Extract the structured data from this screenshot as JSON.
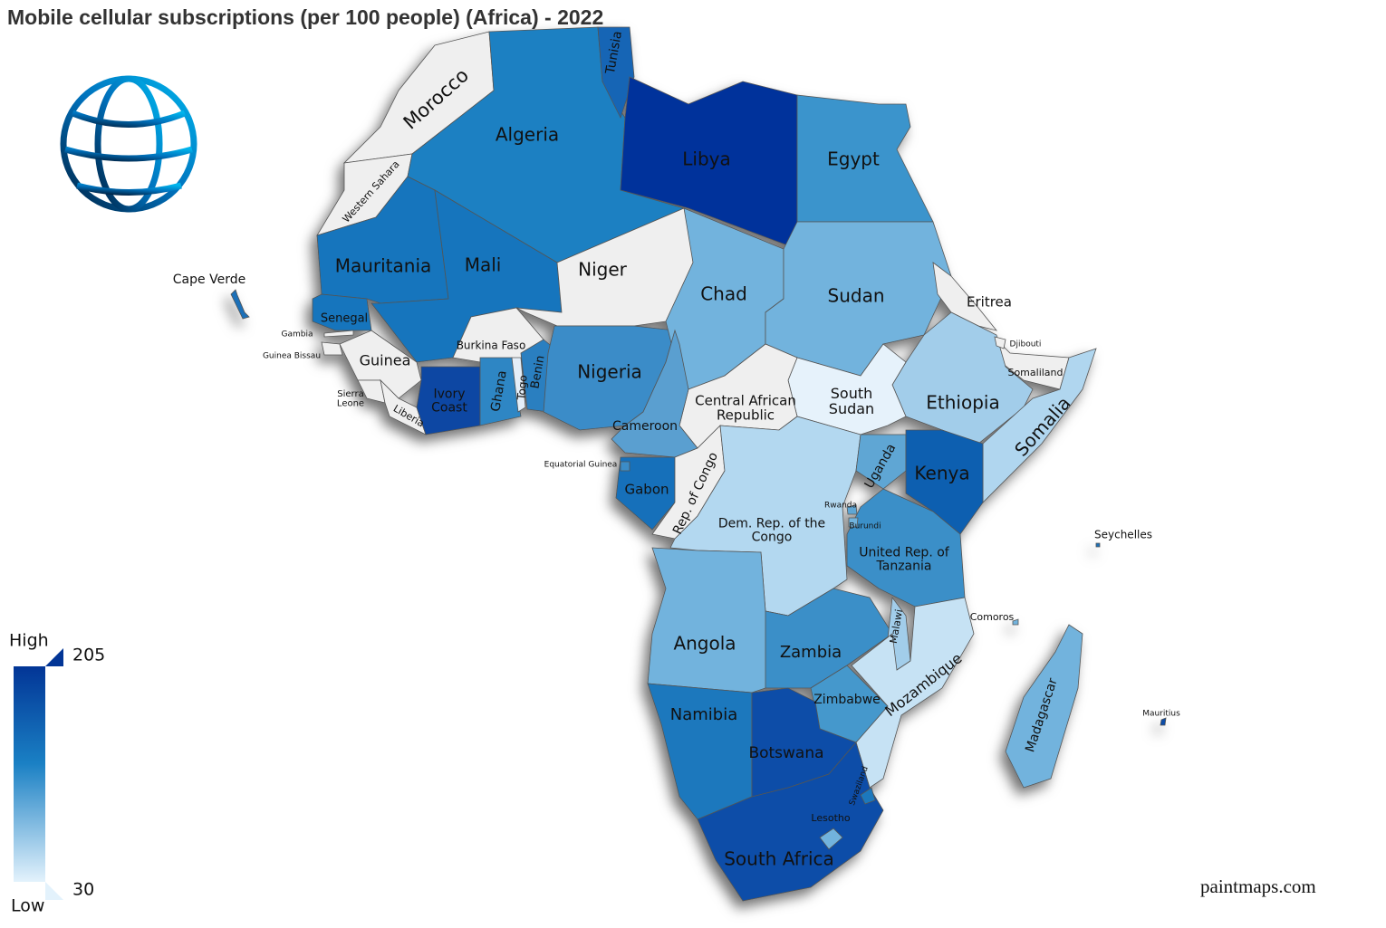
{
  "title": "Mobile cellular subscriptions (per 100 people) (Africa) - 2022",
  "credit": "paintmaps.com",
  "legend": {
    "high_label": "High",
    "low_label": "Low",
    "max": 205,
    "min": 30,
    "max_color": "#023596",
    "mid_color": "#1a80c4",
    "min_color": "#e3f2fc"
  },
  "countries": [
    {
      "label": [
        "Morocco"
      ],
      "color": "#efefef"
    },
    {
      "label": [
        "Western Sahara"
      ],
      "color": "#efefef"
    },
    {
      "label": [
        "Algeria"
      ],
      "color": "#1a80c2"
    },
    {
      "label": [
        "Tunisia"
      ],
      "color": "#1565b5"
    },
    {
      "label": [
        "Libya"
      ],
      "color": "#03319b"
    },
    {
      "label": [
        "Egypt"
      ],
      "color": "#3a94cc"
    },
    {
      "label": [
        "Mauritania"
      ],
      "color": "#1275bd"
    },
    {
      "label": [
        "Mali"
      ],
      "color": "#1275bd"
    },
    {
      "label": [
        "Senegal"
      ],
      "color": "#1275bd"
    },
    {
      "label": [
        "Guinea"
      ],
      "color": "#efefef"
    },
    {
      "label": [
        "Sierra",
        "Leone"
      ],
      "color": "#efefef"
    },
    {
      "label": [
        "Liberia"
      ],
      "color": "#efefef"
    },
    {
      "label": [
        "Ivory",
        "Coast"
      ],
      "color": "#0a47a3"
    },
    {
      "label": [
        "Burkina Faso"
      ],
      "color": "#efefef"
    },
    {
      "label": [
        "Ghana"
      ],
      "color": "#2d86c4"
    },
    {
      "label": [
        "Togo"
      ],
      "color": "#e4eef8"
    },
    {
      "label": [
        "Benin"
      ],
      "color": "#2a7fc0"
    },
    {
      "label": [
        "Niger"
      ],
      "color": "#efefef"
    },
    {
      "label": [
        "Nigeria"
      ],
      "color": "#3a8cc8"
    },
    {
      "label": [
        "Chad"
      ],
      "color": "#72b3dd"
    },
    {
      "label": [
        "Sudan"
      ],
      "color": "#72b3dd"
    },
    {
      "label": [
        "Eritrea"
      ],
      "color": "#efefef"
    },
    {
      "label": [
        "Somaliland"
      ],
      "color": "#efefef"
    },
    {
      "label": [
        "Ethiopia"
      ],
      "color": "#a2cdea"
    },
    {
      "label": [
        "Somalia"
      ],
      "color": "#b0d6ef"
    },
    {
      "label": [
        "South",
        "Sudan"
      ],
      "color": "#e6f2fb"
    },
    {
      "label": [
        "Central African",
        "Republic"
      ],
      "color": "#efefef"
    },
    {
      "label": [
        "Cameroon"
      ],
      "color": "#5a9fd0"
    },
    {
      "label": [
        "Gabon"
      ],
      "color": "#1270ba"
    },
    {
      "label": [
        "Rep. of Congo"
      ],
      "color": "#efefef"
    },
    {
      "label": [
        "Dem. Rep. of the",
        "Congo"
      ],
      "color": "#b3d8f0"
    },
    {
      "label": [
        "Uganda"
      ],
      "color": "#5ea6d4"
    },
    {
      "label": [
        "Kenya"
      ],
      "color": "#0b5fb0"
    },
    {
      "label": [
        "United Rep. of",
        "Tanzania"
      ],
      "color": "#3a8fc8"
    },
    {
      "label": [
        "Angola"
      ],
      "color": "#72b3dd"
    },
    {
      "label": [
        "Zambia"
      ],
      "color": "#3a8fc8"
    },
    {
      "label": [
        "Malawi"
      ],
      "color": "#a2cdea"
    },
    {
      "label": [
        "Mozambique"
      ],
      "color": "#c6e2f4"
    },
    {
      "label": [
        "Zimbabwe"
      ],
      "color": "#4598cc"
    },
    {
      "label": [
        "Namibia"
      ],
      "color": "#1a78bd"
    },
    {
      "label": [
        "Botswana"
      ],
      "color": "#0a4ea8"
    },
    {
      "label": [
        "South Africa"
      ],
      "color": "#0a4ea8"
    },
    {
      "label": [
        "Madagascar"
      ],
      "color": "#72b3dd"
    },
    {
      "label": [
        "Cape Verde"
      ],
      "color": "#1a6fb8"
    },
    {
      "label": [
        "Gambia"
      ],
      "color": "#efefef"
    },
    {
      "label": [
        "Guinea Bissau"
      ],
      "color": "#efefef"
    },
    {
      "label": [
        "Djibouti"
      ],
      "color": "#efefef"
    },
    {
      "label": [
        "Equatorial Guinea"
      ],
      "color": "#3a8cc8"
    },
    {
      "label": [
        "Rwanda"
      ],
      "color": "#5ea6d4"
    },
    {
      "label": [
        "Burundi"
      ],
      "color": "#72b3dd"
    },
    {
      "label": [
        "Seychelles"
      ],
      "color": "#1a6fb8"
    },
    {
      "label": [
        "Comoros"
      ],
      "color": "#72b3dd"
    },
    {
      "label": [
        "Mauritius"
      ],
      "color": "#0a4ea8"
    },
    {
      "label": [
        "Lesotho"
      ],
      "color": "#72b3dd"
    },
    {
      "label": [
        "Swaziland"
      ],
      "color": "#1a78bd"
    }
  ]
}
